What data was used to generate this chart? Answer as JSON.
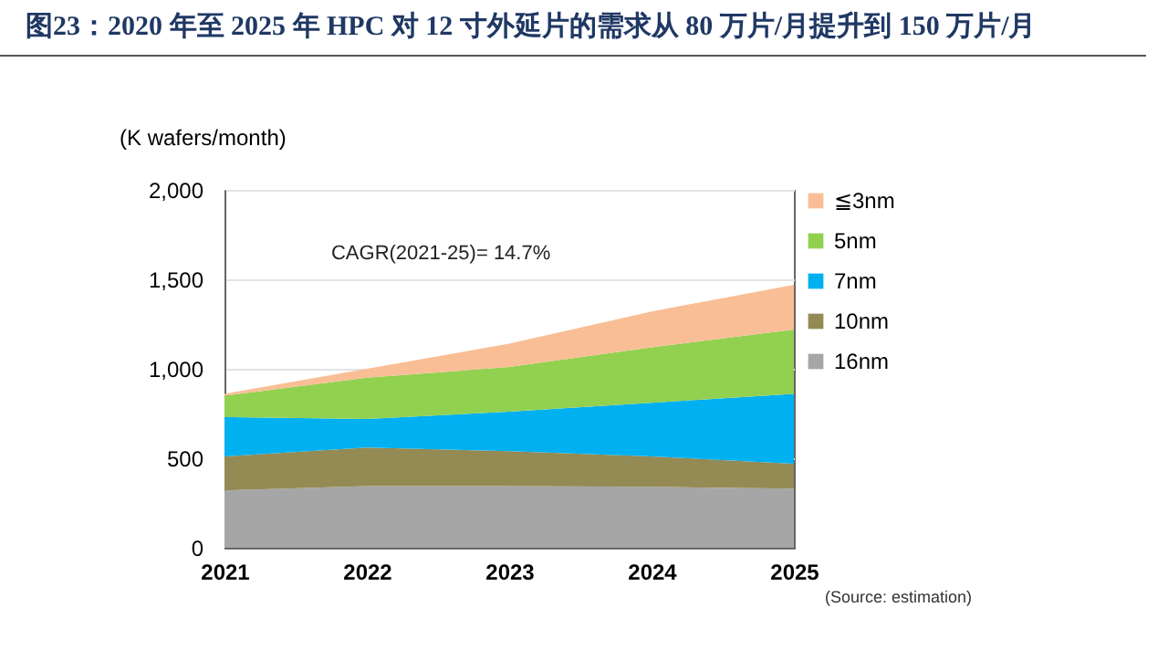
{
  "chart_data": {
    "type": "area",
    "title": "图23：2020 年至 2025 年 HPC 对 12 寸外延片的需求从 80 万片/月提升到 150 万片/月",
    "ylabel": "(K wafers/month)",
    "annotations": [
      "CAGR(2021-25)= 14.7%",
      "(Source: estimation)"
    ],
    "categories": [
      "2021",
      "2022",
      "2023",
      "2024",
      "2025"
    ],
    "stacked": true,
    "ylim": [
      0,
      2000
    ],
    "yticks": [
      {
        "value": 0,
        "label": "0"
      },
      {
        "value": 500,
        "label": "500"
      },
      {
        "value": 1000,
        "label": "1,000"
      },
      {
        "value": 1500,
        "label": "1,500"
      },
      {
        "value": 2000,
        "label": "2,000"
      }
    ],
    "grid": "y",
    "legend": "right",
    "series": [
      {
        "name": "16nm",
        "color": "#a6a6a6",
        "values": [
          320,
          345,
          345,
          340,
          330
        ]
      },
      {
        "name": "10nm",
        "color": "#948a54",
        "values": [
          190,
          215,
          195,
          170,
          140
        ]
      },
      {
        "name": "7nm",
        "color": "#00b0f0",
        "values": [
          220,
          160,
          220,
          300,
          390
        ]
      },
      {
        "name": "5nm",
        "color": "#92d050",
        "values": [
          120,
          230,
          250,
          310,
          360
        ]
      },
      {
        "name": "≦3nm",
        "color": "#f9be95",
        "values": [
          10,
          50,
          130,
          200,
          250
        ]
      }
    ]
  }
}
